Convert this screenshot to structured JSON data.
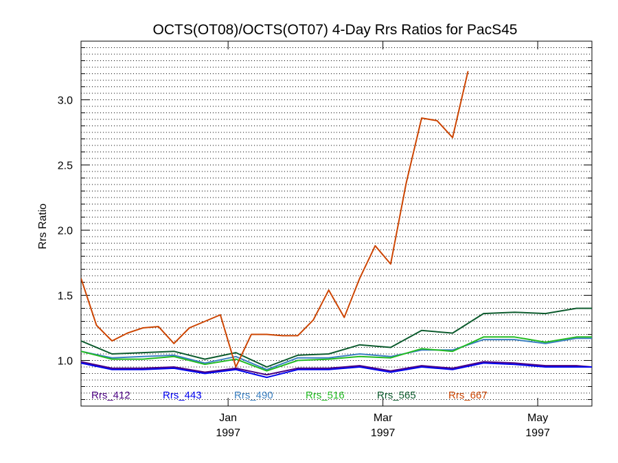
{
  "chart_data": {
    "type": "line",
    "title": "OCTS(OT08)/OCTS(OT07) 4-Day Rrs Ratios for PacS45",
    "xlabel": "",
    "ylabel": "Rrs Ratio",
    "x_ticks": [
      {
        "label": "Jan",
        "sublabel": "1997",
        "x": 9.5
      },
      {
        "label": "Mar",
        "sublabel": "1997",
        "x": 19.5
      },
      {
        "label": "May",
        "sublabel": "1997",
        "x": 29.5
      }
    ],
    "y_ticks": [
      "1.0",
      "1.5",
      "2.0",
      "2.5",
      "3.0"
    ],
    "xlim": [
      0,
      33
    ],
    "ylim": [
      0.65,
      3.45
    ],
    "grid": true,
    "legend_position": "bottom-inside",
    "x": [
      0,
      1,
      2,
      3,
      4,
      5,
      6,
      7,
      8,
      9,
      10,
      11,
      12,
      13,
      14,
      15,
      16,
      17,
      18,
      19,
      20,
      21,
      22,
      23,
      24,
      25,
      26,
      27,
      28,
      29,
      30,
      31,
      32,
      33
    ],
    "series": [
      {
        "name": "Rrs_412",
        "color": "#4b0082",
        "values": [
          0.99,
          null,
          0.94,
          null,
          0.94,
          null,
          0.95,
          null,
          0.91,
          null,
          0.94,
          null,
          0.89,
          null,
          0.94,
          null,
          0.94,
          null,
          0.96,
          null,
          0.92,
          null,
          0.96,
          null,
          0.94,
          null,
          0.99,
          null,
          0.98,
          null,
          0.96,
          null,
          0.96,
          0.95
        ]
      },
      {
        "name": "Rrs_443",
        "color": "#0000ee",
        "values": [
          0.98,
          null,
          0.93,
          null,
          0.93,
          null,
          0.94,
          null,
          0.9,
          null,
          0.93,
          null,
          0.87,
          null,
          0.93,
          null,
          0.93,
          null,
          0.95,
          null,
          0.91,
          null,
          0.95,
          null,
          0.93,
          null,
          0.98,
          null,
          0.97,
          null,
          0.95,
          null,
          0.95,
          0.95
        ]
      },
      {
        "name": "Rrs_490",
        "color": "#3a7fc1",
        "values": [
          1.07,
          null,
          1.02,
          null,
          1.03,
          null,
          1.04,
          null,
          0.98,
          null,
          1.03,
          null,
          0.93,
          null,
          1.02,
          null,
          1.02,
          null,
          1.05,
          null,
          1.03,
          null,
          1.08,
          null,
          1.08,
          null,
          1.16,
          null,
          1.16,
          null,
          1.13,
          null,
          1.17,
          1.17
        ]
      },
      {
        "name": "Rrs_516",
        "color": "#22bb22",
        "values": [
          1.07,
          null,
          1.01,
          null,
          1.01,
          null,
          1.03,
          null,
          0.97,
          null,
          1.01,
          null,
          0.92,
          null,
          1.0,
          null,
          1.01,
          null,
          1.03,
          null,
          1.02,
          null,
          1.09,
          null,
          1.07,
          null,
          1.18,
          null,
          1.18,
          null,
          1.14,
          null,
          1.18,
          1.18
        ]
      },
      {
        "name": "Rrs_565",
        "color": "#0b5a2c",
        "values": [
          1.15,
          null,
          1.05,
          null,
          1.06,
          null,
          1.07,
          null,
          1.01,
          null,
          1.06,
          null,
          0.95,
          null,
          1.04,
          null,
          1.05,
          null,
          1.12,
          null,
          1.1,
          null,
          1.23,
          null,
          1.21,
          null,
          1.36,
          null,
          1.37,
          null,
          1.36,
          null,
          1.4,
          1.4
        ]
      },
      {
        "name": "Rrs_667",
        "color": "#cc4400",
        "values": [
          1.63,
          1.27,
          1.15,
          1.21,
          1.25,
          1.26,
          1.13,
          1.25,
          1.3,
          1.35,
          0.95,
          1.2,
          1.2,
          1.19,
          1.19,
          1.31,
          1.54,
          1.33,
          1.63,
          1.88,
          1.74,
          2.36,
          2.86,
          2.84,
          2.71,
          3.22,
          null,
          null,
          null,
          null,
          null,
          null,
          null,
          null
        ]
      }
    ]
  }
}
